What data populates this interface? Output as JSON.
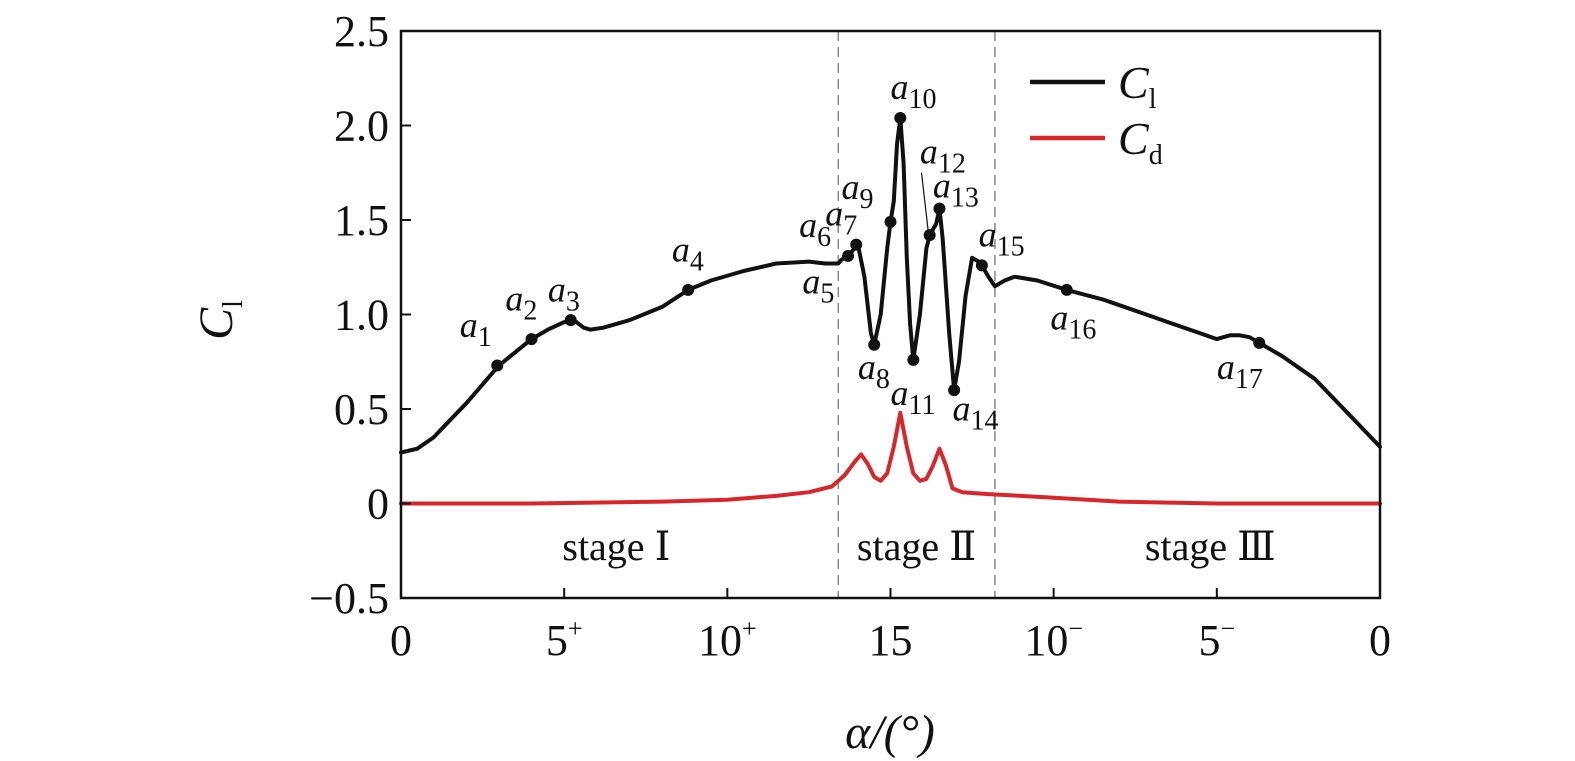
{
  "chart_data": {
    "type": "line",
    "xlabel": "α/(°)",
    "ylabel": "C",
    "ylabel_sub": "l",
    "xlim": [
      0,
      30
    ],
    "ylim": [
      -0.5,
      2.5
    ],
    "yticks": [
      {
        "v": 2.5,
        "label": "2.5"
      },
      {
        "v": 2.0,
        "label": "2.0"
      },
      {
        "v": 1.5,
        "label": "1.5"
      },
      {
        "v": 1.0,
        "label": "1.0"
      },
      {
        "v": 0.5,
        "label": "0.5"
      },
      {
        "v": 0,
        "label": "0"
      },
      {
        "v": -0.5,
        "label": "−0.5"
      }
    ],
    "xticks": [
      {
        "v": 0,
        "label": "0",
        "sup": ""
      },
      {
        "v": 5,
        "label": "5",
        "sup": "+"
      },
      {
        "v": 10,
        "label": "10",
        "sup": "+"
      },
      {
        "v": 15,
        "label": "15",
        "sup": ""
      },
      {
        "v": 20,
        "label": "10",
        "sup": "−"
      },
      {
        "v": 25,
        "label": "5",
        "sup": "−"
      },
      {
        "v": 30,
        "label": "0",
        "sup": ""
      }
    ],
    "dividers": [
      13.4,
      18.2
    ],
    "stages": [
      {
        "label": "stage  Ⅰ",
        "x": 6.6
      },
      {
        "label": "stage  Ⅱ",
        "x": 15.8
      },
      {
        "label": "stage  Ⅲ",
        "x": 24.8
      }
    ],
    "legend_position": "top-right",
    "series": [
      {
        "name": "C",
        "name_sub": "l",
        "color": "#111111",
        "points": [
          [
            0,
            0.27
          ],
          [
            0.5,
            0.29
          ],
          [
            1,
            0.35
          ],
          [
            1.5,
            0.44
          ],
          [
            2,
            0.53
          ],
          [
            2.5,
            0.63
          ],
          [
            3,
            0.73
          ],
          [
            3.5,
            0.8
          ],
          [
            4,
            0.87
          ],
          [
            4.5,
            0.92
          ],
          [
            5,
            0.96
          ],
          [
            5.3,
            0.97
          ],
          [
            5.6,
            0.93
          ],
          [
            5.8,
            0.92
          ],
          [
            6.2,
            0.93
          ],
          [
            7,
            0.97
          ],
          [
            8,
            1.04
          ],
          [
            8.8,
            1.13
          ],
          [
            9.5,
            1.18
          ],
          [
            10.5,
            1.23
          ],
          [
            11.5,
            1.27
          ],
          [
            12.5,
            1.28
          ],
          [
            13.0,
            1.27
          ],
          [
            13.4,
            1.27
          ],
          [
            13.5,
            1.29
          ],
          [
            13.7,
            1.31
          ],
          [
            13.9,
            1.35
          ],
          [
            14.0,
            1.37
          ],
          [
            14.2,
            1.2
          ],
          [
            14.4,
            0.9
          ],
          [
            14.5,
            0.84
          ],
          [
            14.7,
            1.0
          ],
          [
            14.9,
            1.35
          ],
          [
            15.0,
            1.49
          ],
          [
            15.1,
            1.6
          ],
          [
            15.2,
            1.9
          ],
          [
            15.3,
            2.04
          ],
          [
            15.4,
            1.8
          ],
          [
            15.5,
            1.3
          ],
          [
            15.6,
            0.95
          ],
          [
            15.7,
            0.76
          ],
          [
            15.9,
            1.0
          ],
          [
            16.1,
            1.35
          ],
          [
            16.2,
            1.42
          ],
          [
            16.4,
            1.48
          ],
          [
            16.5,
            1.56
          ],
          [
            16.6,
            1.4
          ],
          [
            16.8,
            0.9
          ],
          [
            16.95,
            0.6
          ],
          [
            17.1,
            0.75
          ],
          [
            17.3,
            1.1
          ],
          [
            17.5,
            1.3
          ],
          [
            17.7,
            1.28
          ],
          [
            17.8,
            1.26
          ],
          [
            18.0,
            1.2
          ],
          [
            18.2,
            1.15
          ],
          [
            18.5,
            1.18
          ],
          [
            18.8,
            1.2
          ],
          [
            19.5,
            1.18
          ],
          [
            20.4,
            1.13
          ],
          [
            21.5,
            1.08
          ],
          [
            22.5,
            1.02
          ],
          [
            23.5,
            0.96
          ],
          [
            24.5,
            0.9
          ],
          [
            25.0,
            0.87
          ],
          [
            25.4,
            0.89
          ],
          [
            25.7,
            0.89
          ],
          [
            26.0,
            0.88
          ],
          [
            26.3,
            0.85
          ],
          [
            27,
            0.78
          ],
          [
            28,
            0.66
          ],
          [
            29,
            0.48
          ],
          [
            29.5,
            0.39
          ],
          [
            30,
            0.3
          ]
        ]
      },
      {
        "name": "C",
        "name_sub": "d",
        "color": "#d8262b",
        "points": [
          [
            0,
            0.0
          ],
          [
            4,
            0.0
          ],
          [
            8,
            0.01
          ],
          [
            10,
            0.02
          ],
          [
            11.5,
            0.04
          ],
          [
            12.5,
            0.06
          ],
          [
            13.2,
            0.09
          ],
          [
            13.6,
            0.15
          ],
          [
            13.9,
            0.22
          ],
          [
            14.1,
            0.26
          ],
          [
            14.3,
            0.21
          ],
          [
            14.5,
            0.14
          ],
          [
            14.7,
            0.12
          ],
          [
            14.9,
            0.16
          ],
          [
            15.1,
            0.3
          ],
          [
            15.3,
            0.48
          ],
          [
            15.5,
            0.3
          ],
          [
            15.7,
            0.16
          ],
          [
            15.9,
            0.12
          ],
          [
            16.1,
            0.13
          ],
          [
            16.3,
            0.2
          ],
          [
            16.5,
            0.29
          ],
          [
            16.7,
            0.2
          ],
          [
            16.9,
            0.08
          ],
          [
            17.2,
            0.06
          ],
          [
            18.0,
            0.05
          ],
          [
            19,
            0.04
          ],
          [
            20,
            0.03
          ],
          [
            22,
            0.01
          ],
          [
            25,
            0.0
          ],
          [
            30,
            0.0
          ]
        ]
      }
    ],
    "annotations": [
      {
        "label": "a",
        "sub": "1",
        "x": 2.95,
        "y": 0.73,
        "lx": 1.8,
        "ly": 0.88,
        "dot": true
      },
      {
        "label": "a",
        "sub": "2",
        "x": 4.0,
        "y": 0.87,
        "lx": 3.2,
        "ly": 1.02,
        "dot": true
      },
      {
        "label": "a",
        "sub": "3",
        "x": 5.2,
        "y": 0.97,
        "lx": 4.5,
        "ly": 1.07,
        "dot": true
      },
      {
        "label": "a",
        "sub": "4",
        "x": 8.8,
        "y": 1.13,
        "lx": 8.3,
        "ly": 1.28,
        "dot": true
      },
      {
        "label": "a",
        "sub": "5",
        "x": 13.4,
        "y": 1.27,
        "lx": 12.3,
        "ly": 1.11,
        "dot": false
      },
      {
        "label": "a",
        "sub": "6",
        "x": 13.7,
        "y": 1.31,
        "lx": 12.2,
        "ly": 1.41,
        "dot": true
      },
      {
        "label": "a",
        "sub": "7",
        "x": 13.95,
        "y": 1.37,
        "lx": 13.0,
        "ly": 1.47,
        "dot": true
      },
      {
        "label": "a",
        "sub": "8",
        "x": 14.5,
        "y": 0.84,
        "lx": 14.0,
        "ly": 0.66,
        "dot": true
      },
      {
        "label": "a",
        "sub": "9",
        "x": 15.0,
        "y": 1.49,
        "lx": 13.5,
        "ly": 1.61,
        "dot": true
      },
      {
        "label": "a",
        "sub": "10",
        "x": 15.3,
        "y": 2.04,
        "lx": 15.0,
        "ly": 2.14,
        "dot": true
      },
      {
        "label": "a",
        "sub": "11",
        "x": 15.7,
        "y": 0.76,
        "lx": 15.0,
        "ly": 0.52,
        "dot": true
      },
      {
        "label": "a",
        "sub": "12",
        "x": 16.2,
        "y": 1.42,
        "lx": 15.9,
        "ly": 1.8,
        "dot": true,
        "leader": [
          15.95,
          1.75,
          16.15,
          1.45
        ]
      },
      {
        "label": "a",
        "sub": "13",
        "x": 16.5,
        "y": 1.56,
        "lx": 16.3,
        "ly": 1.62,
        "dot": true
      },
      {
        "label": "a",
        "sub": "14",
        "x": 16.95,
        "y": 0.6,
        "lx": 16.9,
        "ly": 0.44,
        "dot": true
      },
      {
        "label": "a",
        "sub": "15",
        "x": 17.8,
        "y": 1.26,
        "lx": 17.7,
        "ly": 1.36,
        "dot": true
      },
      {
        "label": "a",
        "sub": "16",
        "x": 20.4,
        "y": 1.13,
        "lx": 19.9,
        "ly": 0.92,
        "dot": true
      },
      {
        "label": "a",
        "sub": "17",
        "x": 26.3,
        "y": 0.85,
        "lx": 25.0,
        "ly": 0.66,
        "dot": true
      }
    ]
  }
}
